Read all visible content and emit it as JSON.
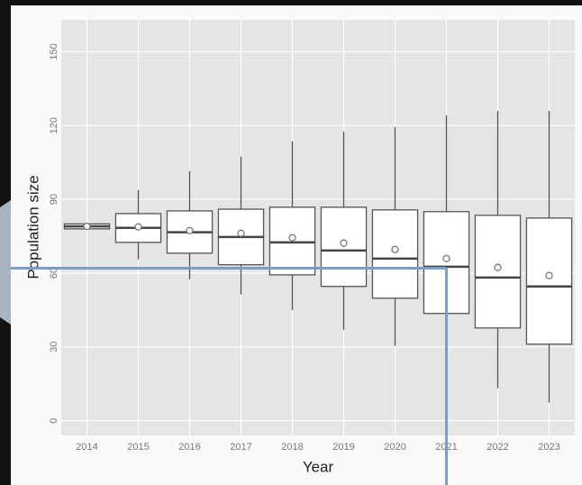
{
  "chart_data": {
    "type": "box",
    "x_label": "Year",
    "y_label": "Population size",
    "categories": [
      "2014",
      "2015",
      "2016",
      "2017",
      "2018",
      "2019",
      "2020",
      "2021",
      "2022",
      "2023"
    ],
    "min": [
      78,
      65.6,
      57.5,
      51.3,
      45,
      37,
      30.4,
      20,
      13.2,
      7.3
    ],
    "q1": [
      78,
      72.5,
      68.1,
      63.4,
      59.3,
      54.6,
      49.8,
      43.6,
      37.7,
      31.1
    ],
    "median": [
      79,
      78.4,
      76.6,
      74.7,
      72.5,
      69.2,
      65.9,
      62.6,
      58.2,
      54.6
    ],
    "q3": [
      80,
      84.2,
      85.3,
      86,
      86.8,
      86.8,
      85.7,
      85,
      83.5,
      82.4
    ],
    "max": [
      80,
      93.8,
      101.5,
      107.3,
      113.6,
      117.6,
      119.4,
      124.2,
      126,
      126
    ],
    "mean": [
      79,
      78.8,
      77.3,
      76.2,
      74.4,
      72.2,
      69.6,
      65.9,
      62.3,
      59
    ],
    "ylim": [
      -6,
      163
    ],
    "yticks": [
      0,
      30,
      60,
      90,
      120,
      150
    ],
    "grid": true,
    "reference_y": 62,
    "reference_x": "2021",
    "reference_color": "#7f9cc4"
  }
}
